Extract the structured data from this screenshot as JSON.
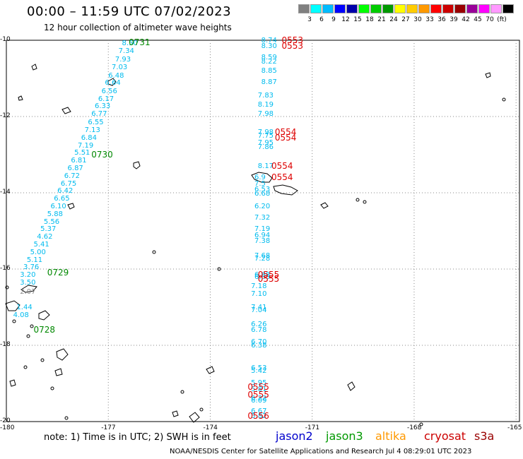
{
  "title": "00:00 – 11:59 UTC 07/02/2023",
  "subtitle": "12 hour collection of altimeter wave heights",
  "note": "note:  1) Time is in UTC;  2) SWH is in feet",
  "credit": "NOAA/NESDIS Center for Satellite Applications and Research    Jul  4 08:29:01 UTC 2023",
  "satellites": [
    {
      "name": "jason2",
      "color": "#0000cc"
    },
    {
      "name": "jason3",
      "color": "#009900"
    },
    {
      "name": "altika",
      "color": "#ff9900"
    },
    {
      "name": "cryosat",
      "color": "#cc0000"
    },
    {
      "name": "s3a",
      "color": "#990000"
    }
  ],
  "color_scale": {
    "colors": [
      "#808080",
      "#00ffff",
      "#00bbff",
      "#0000ff",
      "#0000aa",
      "#00ff00",
      "#00cc00",
      "#009900",
      "#ffff00",
      "#ffcc00",
      "#ff9900",
      "#ff0000",
      "#cc0000",
      "#990000",
      "#990099",
      "#ff00ff",
      "#ff99ff",
      "#000000"
    ],
    "labels": [
      "3",
      "6",
      "9",
      "12",
      "15",
      "18",
      "21",
      "24",
      "27",
      "30",
      "33",
      "36",
      "39",
      "42",
      "45",
      "70",
      "(ft)"
    ]
  },
  "axes": {
    "lon_labels": [
      "-180",
      "-177",
      "-174",
      "-171",
      "-168",
      "-165"
    ],
    "lat_labels": [
      "-10",
      "-12",
      "-14",
      "-16",
      "-18",
      "-20"
    ],
    "lon_range": [
      -180,
      -164.9
    ],
    "lat_range": [
      -20,
      -10
    ]
  },
  "passes": [
    {
      "id": "0731",
      "color": "#008800",
      "lon": -176.4,
      "lat": -10.05
    },
    {
      "id": "0730",
      "color": "#008800",
      "lon": -177.5,
      "lat": -13.0
    },
    {
      "id": "0729",
      "color": "#008800",
      "lon": -178.8,
      "lat": -16.1
    },
    {
      "id": "0728",
      "color": "#008800",
      "lon": -179.2,
      "lat": -17.6
    },
    {
      "id": "0553",
      "color": "#dd0000",
      "lon": -171.9,
      "lat": -10.0
    },
    {
      "id": "0553",
      "color": "#dd0000",
      "lon": -171.9,
      "lat": -10.15
    },
    {
      "id": "0554",
      "color": "#dd0000",
      "lon": -172.1,
      "lat": -12.4
    },
    {
      "id": "0554",
      "color": "#dd0000",
      "lon": -172.1,
      "lat": -12.55
    },
    {
      "id": "0554",
      "color": "#dd0000",
      "lon": -172.2,
      "lat": -13.3
    },
    {
      "id": "0554",
      "color": "#dd0000",
      "lon": -172.2,
      "lat": -13.6
    },
    {
      "id": "0555",
      "color": "#dd0000",
      "lon": -172.6,
      "lat": -16.15
    },
    {
      "id": "0555",
      "color": "#dd0000",
      "lon": -172.6,
      "lat": -16.25
    },
    {
      "id": "0555",
      "color": "#dd0000",
      "lon": -172.9,
      "lat": -19.1
    },
    {
      "id": "0555",
      "color": "#dd0000",
      "lon": -172.9,
      "lat": -19.3
    },
    {
      "id": "0556",
      "color": "#dd0000",
      "lon": -172.9,
      "lat": -19.85
    }
  ],
  "tracks": [
    {
      "color": "#00bbee",
      "obs": [
        {
          "v": "8.50",
          "lon": -176.6,
          "lat": -10.08
        },
        {
          "v": "7.34",
          "lon": -176.7,
          "lat": -10.27
        },
        {
          "v": "7.93",
          "lon": -176.8,
          "lat": -10.5
        },
        {
          "v": "7.03",
          "lon": -176.9,
          "lat": -10.7
        },
        {
          "v": "6.48",
          "lon": -177.0,
          "lat": -10.92
        },
        {
          "v": "6.64",
          "lon": -177.1,
          "lat": -11.12
        },
        {
          "v": "6.56",
          "lon": -177.2,
          "lat": -11.33
        },
        {
          "v": "6.17",
          "lon": -177.3,
          "lat": -11.53
        },
        {
          "v": "6.33",
          "lon": -177.4,
          "lat": -11.73
        },
        {
          "v": "6.77",
          "lon": -177.5,
          "lat": -11.93
        },
        {
          "v": "6.55",
          "lon": -177.6,
          "lat": -12.15
        },
        {
          "v": "7.13",
          "lon": -177.7,
          "lat": -12.35
        },
        {
          "v": "6.84",
          "lon": -177.8,
          "lat": -12.55
        },
        {
          "v": "7.19",
          "lon": -177.9,
          "lat": -12.75
        },
        {
          "v": "5.51",
          "lon": -178.0,
          "lat": -12.95
        },
        {
          "v": "6.81",
          "lon": -178.1,
          "lat": -13.15
        },
        {
          "v": "6.87",
          "lon": -178.2,
          "lat": -13.35
        },
        {
          "v": "6.72",
          "lon": -178.3,
          "lat": -13.55
        },
        {
          "v": "6.75",
          "lon": -178.4,
          "lat": -13.75
        },
        {
          "v": "6.42",
          "lon": -178.5,
          "lat": -13.95
        },
        {
          "v": "6.65",
          "lon": -178.6,
          "lat": -14.15
        },
        {
          "v": "6.10",
          "lon": -178.7,
          "lat": -14.35
        },
        {
          "v": "5.88",
          "lon": -178.8,
          "lat": -14.55
        },
        {
          "v": "5.56",
          "lon": -178.9,
          "lat": -14.75
        },
        {
          "v": "5.37",
          "lon": -179.0,
          "lat": -14.95
        },
        {
          "v": "4.62",
          "lon": -179.1,
          "lat": -15.15
        },
        {
          "v": "5.41",
          "lon": -179.2,
          "lat": -15.35
        },
        {
          "v": "5.00",
          "lon": -179.3,
          "lat": -15.55
        },
        {
          "v": "5.11",
          "lon": -179.4,
          "lat": -15.75
        },
        {
          "v": "3.76",
          "lon": -179.5,
          "lat": -15.95
        },
        {
          "v": "3.20",
          "lon": -179.6,
          "lat": -16.15
        },
        {
          "v": "3.50",
          "lon": -179.6,
          "lat": -16.35
        },
        {
          "v": "1.44",
          "lon": -179.7,
          "lat": -17.0
        },
        {
          "v": "4.08",
          "lon": -179.8,
          "lat": -17.2
        }
      ]
    },
    {
      "color": "#888888",
      "obs": [
        {
          "v": "2.07",
          "lon": -179.6,
          "lat": -16.6
        }
      ]
    },
    {
      "color": "#00bbee",
      "obs": [
        {
          "v": "8.74",
          "lon": -172.5,
          "lat": -10.0
        },
        {
          "v": "8.30",
          "lon": -172.5,
          "lat": -10.15
        },
        {
          "v": "8.59",
          "lon": -172.5,
          "lat": -10.45
        },
        {
          "v": "8.22",
          "lon": -172.5,
          "lat": -10.55
        },
        {
          "v": "8.85",
          "lon": -172.5,
          "lat": -10.8
        },
        {
          "v": "8.87",
          "lon": -172.5,
          "lat": -11.1
        },
        {
          "v": "7.83",
          "lon": -172.6,
          "lat": -11.45
        },
        {
          "v": "8.19",
          "lon": -172.6,
          "lat": -11.68
        },
        {
          "v": "7.98",
          "lon": -172.6,
          "lat": -11.92
        },
        {
          "v": "7.98",
          "lon": -172.6,
          "lat": -12.4
        },
        {
          "v": "7.75",
          "lon": -172.6,
          "lat": -12.5
        },
        {
          "v": "7.95",
          "lon": -172.6,
          "lat": -12.68
        },
        {
          "v": "7.86",
          "lon": -172.6,
          "lat": -12.8
        },
        {
          "v": "8.17",
          "lon": -172.6,
          "lat": -13.3
        },
        {
          "v": "6.9",
          "lon": -172.7,
          "lat": -13.6
        },
        {
          "v": "7.5",
          "lon": -172.7,
          "lat": -13.75
        },
        {
          "v": "6.53",
          "lon": -172.7,
          "lat": -13.9
        },
        {
          "v": "6.68",
          "lon": -172.7,
          "lat": -14.02
        },
        {
          "v": "6.20",
          "lon": -172.7,
          "lat": -14.35
        },
        {
          "v": "7.32",
          "lon": -172.7,
          "lat": -14.65
        },
        {
          "v": "7.19",
          "lon": -172.7,
          "lat": -14.95
        },
        {
          "v": "6.94",
          "lon": -172.7,
          "lat": -15.12
        },
        {
          "v": "7.38",
          "lon": -172.7,
          "lat": -15.25
        },
        {
          "v": "7.68",
          "lon": -172.7,
          "lat": -15.65
        },
        {
          "v": "7.28",
          "lon": -172.7,
          "lat": -15.72
        },
        {
          "v": "6.68",
          "lon": -172.7,
          "lat": -16.15
        },
        {
          "v": "6.63",
          "lon": -172.7,
          "lat": -16.2
        },
        {
          "v": "7.18",
          "lon": -172.8,
          "lat": -16.45
        },
        {
          "v": "7.10",
          "lon": -172.8,
          "lat": -16.65
        },
        {
          "v": "7.41",
          "lon": -172.8,
          "lat": -17.0
        },
        {
          "v": "7.04",
          "lon": -172.8,
          "lat": -17.08
        },
        {
          "v": "6.26",
          "lon": -172.8,
          "lat": -17.45
        },
        {
          "v": "6.78",
          "lon": -172.8,
          "lat": -17.6
        },
        {
          "v": "6.70",
          "lon": -172.8,
          "lat": -17.9
        },
        {
          "v": "6.38",
          "lon": -172.8,
          "lat": -18.0
        },
        {
          "v": "6.53",
          "lon": -172.8,
          "lat": -18.6
        },
        {
          "v": "5.42",
          "lon": -172.8,
          "lat": -18.67
        },
        {
          "v": "5.95",
          "lon": -172.8,
          "lat": -18.98
        },
        {
          "v": "5.81",
          "lon": -172.8,
          "lat": -19.15
        },
        {
          "v": "6.22",
          "lon": -172.8,
          "lat": -19.38
        },
        {
          "v": "6.09",
          "lon": -172.8,
          "lat": -19.45
        },
        {
          "v": "6.67",
          "lon": -172.8,
          "lat": -19.73
        },
        {
          "v": "5.82",
          "lon": -172.8,
          "lat": -19.85
        }
      ]
    }
  ]
}
